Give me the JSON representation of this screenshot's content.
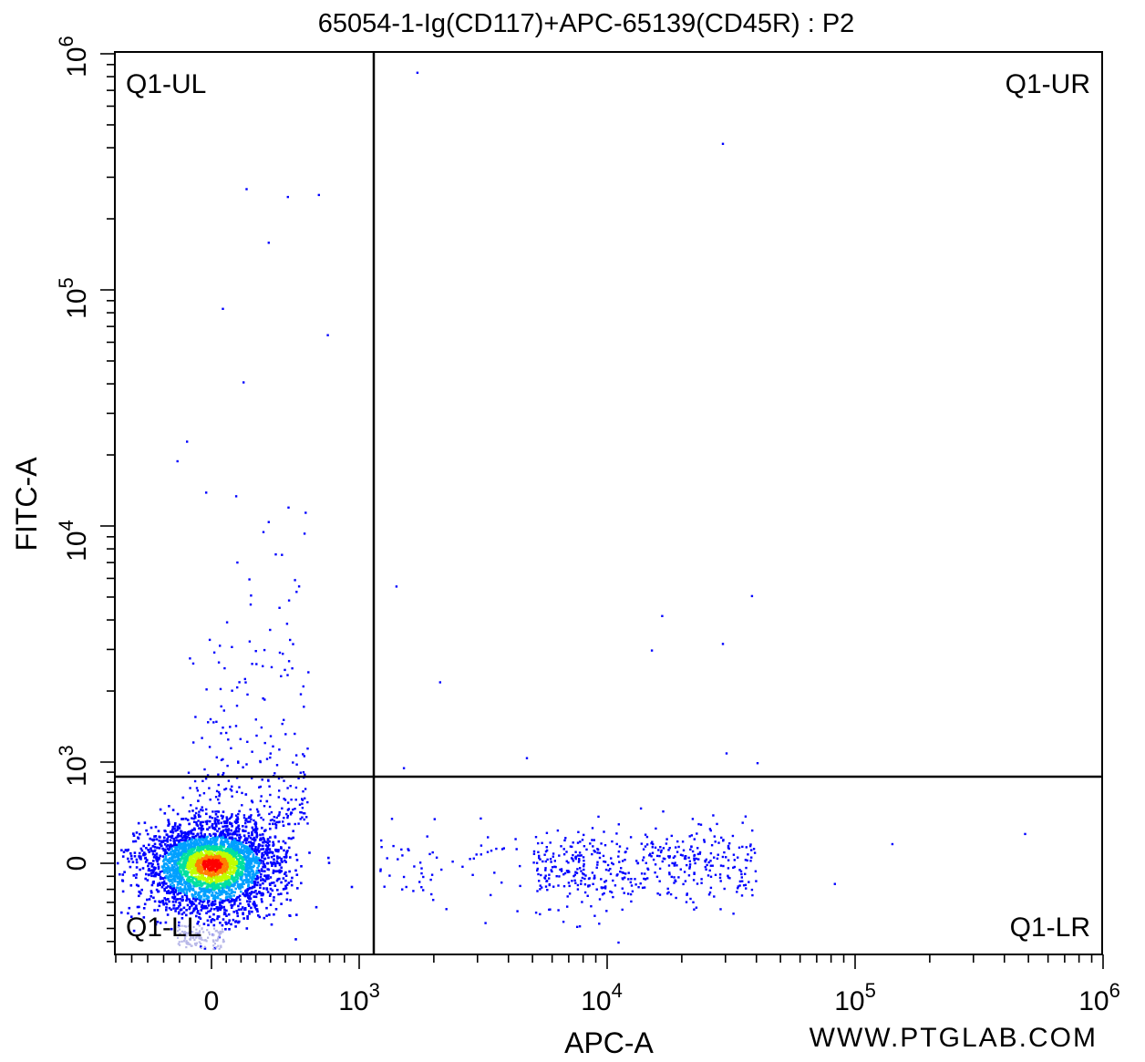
{
  "chart_data": {
    "type": "scatter",
    "title": "65054-1-Ig(CD117)+APC-65139(CD45R) : P2",
    "xlabel": "APC-A",
    "ylabel": "FITC-A",
    "x_scale": "biexponential",
    "y_scale": "biexponential",
    "x_tick_labels": [
      "0",
      "10^3",
      "10^4",
      "10^5",
      "10^6"
    ],
    "y_tick_labels": [
      "0",
      "10^3",
      "10^4",
      "10^5",
      "10^6"
    ],
    "xlim": [
      -600,
      1000000
    ],
    "ylim": [
      -700,
      1000000
    ],
    "gate": {
      "x": 1250,
      "y": 820
    },
    "quadrants": [
      "Q1-UL",
      "Q1-UR",
      "Q1-LL",
      "Q1-LR"
    ],
    "populations": [
      {
        "name": "main cluster (Q1-LL)",
        "x_center": 0,
        "y_center": 0,
        "x_spread": 220,
        "y_spread": 190
      },
      {
        "name": "APC+ cluster (Q1-LR)",
        "x_range": [
          5000,
          40000
        ],
        "y_center": 0
      }
    ],
    "sample_points": [
      [
        1700,
        840000
      ],
      [
        29000,
        420000
      ],
      [
        230,
        270000
      ],
      [
        720,
        255000
      ],
      [
        510,
        250000
      ],
      [
        380,
        160000
      ],
      [
        70,
        84000
      ],
      [
        780,
        65000
      ],
      [
        210,
        41000
      ],
      [
        -160,
        23000
      ],
      [
        -220,
        19000
      ],
      [
        -40,
        14000
      ],
      [
        160,
        13500
      ],
      [
        630,
        11500
      ],
      [
        380,
        10500
      ],
      [
        1400,
        5600
      ],
      [
        38000,
        5100
      ],
      [
        16500,
        4200
      ],
      [
        29000,
        3200
      ],
      [
        15000,
        3000
      ],
      [
        2100,
        2200
      ],
      [
        40000,
        1000
      ],
      [
        30000,
        1100
      ],
      [
        1500,
        950
      ],
      [
        4700,
        1050
      ],
      [
        480000,
        300
      ],
      [
        140000,
        200
      ],
      [
        82000,
        -150
      ],
      [
        3200,
        -450
      ],
      [
        11000,
        -600
      ],
      [
        7500,
        -480
      ]
    ],
    "density_colors": [
      "#0000ff",
      "#00a0ff",
      "#00e0a0",
      "#c0ff00",
      "#ff8000",
      "#ff0000"
    ],
    "watermark": "WWW.PTGLAB.COM"
  }
}
